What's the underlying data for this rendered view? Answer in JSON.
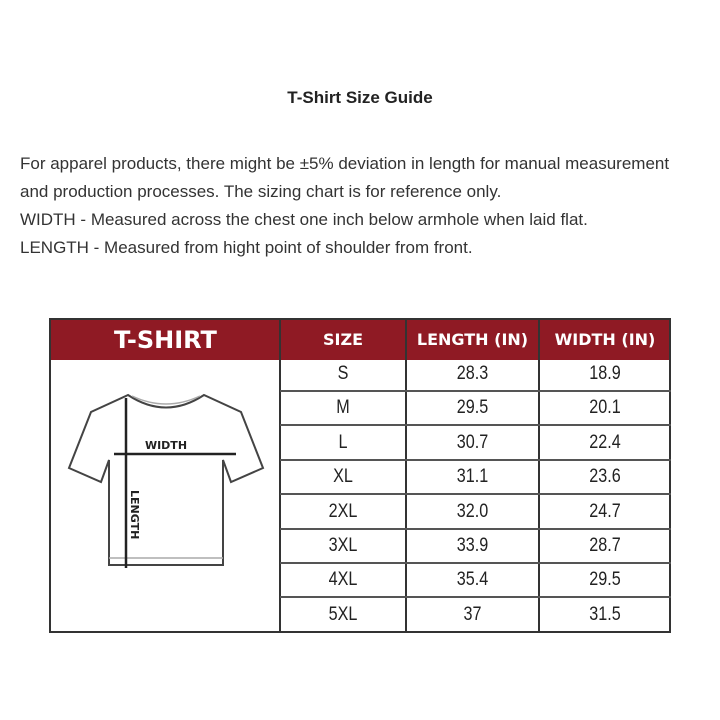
{
  "title": "T-Shirt Size Guide",
  "description": [
    "For apparel products, there might be ±5% deviation in length for manual measurement and production processes. The sizing chart is for reference only.",
    "WIDTH - Measured across the chest one inch below armhole when laid flat.",
    "LENGTH - Measured from hight point of shoulder from front."
  ],
  "table": {
    "header_color": "#8f1a24",
    "product_label": "T-SHIRT",
    "columns": [
      "SIZE",
      "LENGTH (IN)",
      "WIDTH (IN)"
    ],
    "diagram_labels": {
      "width": "WIDTH",
      "length": "LENGTH"
    },
    "rows": [
      [
        "S",
        "28.3",
        "18.9"
      ],
      [
        "M",
        "29.5",
        "20.1"
      ],
      [
        "L",
        "30.7",
        "22.4"
      ],
      [
        "XL",
        "31.1",
        "23.6"
      ],
      [
        "2XL",
        "32.0",
        "24.7"
      ],
      [
        "3XL",
        "33.9",
        "28.7"
      ],
      [
        "4XL",
        "35.4",
        "29.5"
      ],
      [
        "5XL",
        "37",
        "31.5"
      ]
    ]
  }
}
